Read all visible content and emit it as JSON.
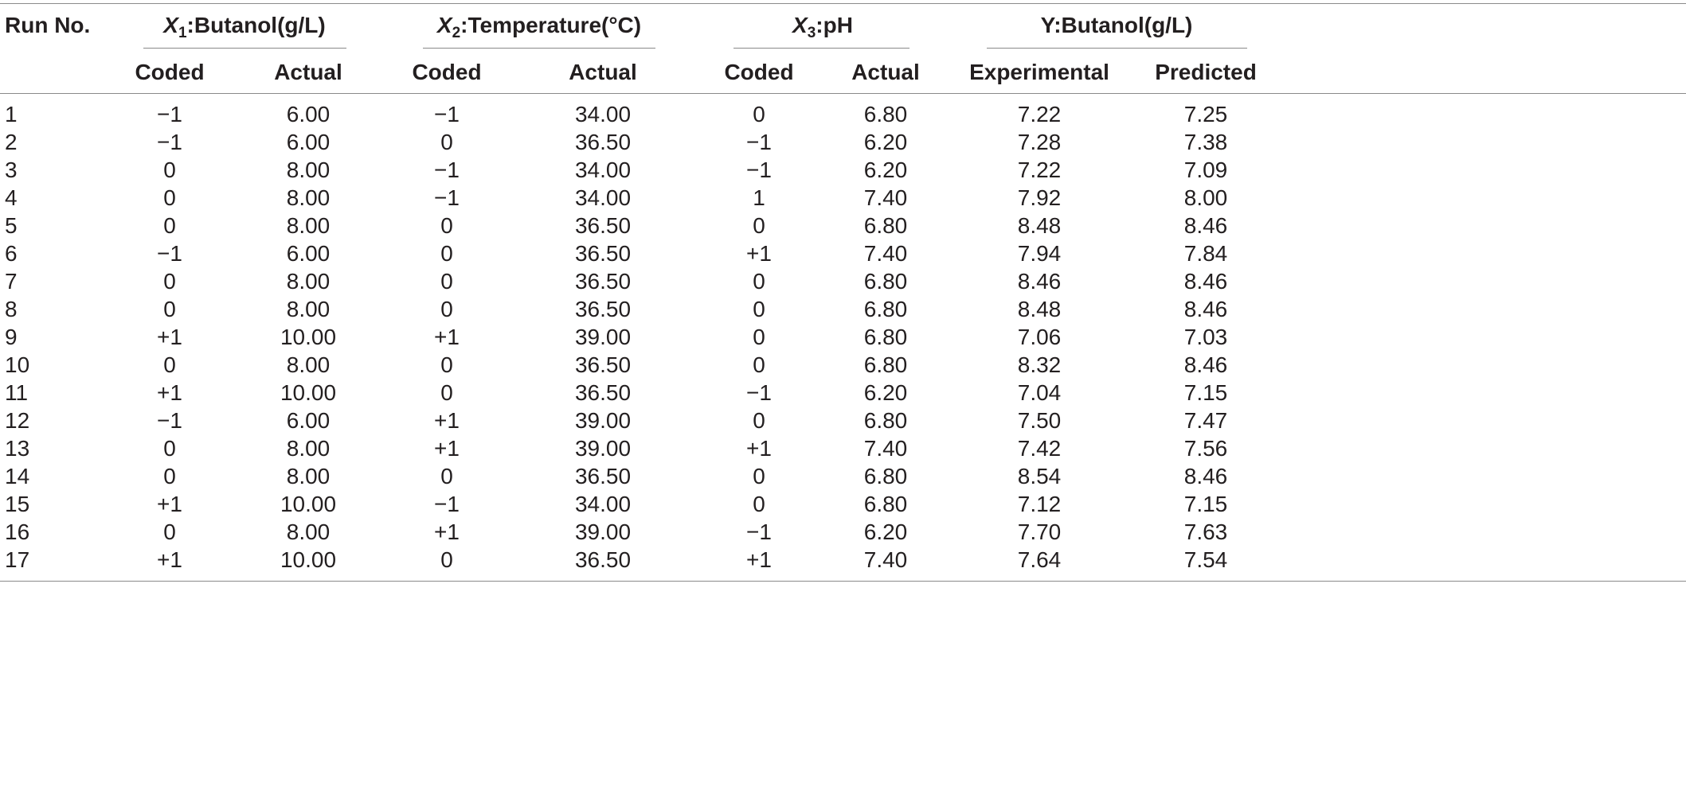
{
  "table": {
    "run_header": "Run No.",
    "groups": [
      {
        "var": "X",
        "sub": "1",
        "rest": ":Butanol(g/L)"
      },
      {
        "var": "X",
        "sub": "2",
        "rest": ":Temperature(°C)"
      },
      {
        "var": "X",
        "sub": "3",
        "rest": ":pH"
      },
      {
        "var": "",
        "sub": "",
        "rest": "Y:Butanol(g/L)"
      }
    ],
    "subheaders": [
      "Coded",
      "Actual",
      "Coded",
      "Actual",
      "Coded",
      "Actual",
      "Experimental",
      "Predicted"
    ],
    "rows": [
      [
        "1",
        "−1",
        "6.00",
        "−1",
        "34.00",
        "0",
        "6.80",
        "7.22",
        "7.25"
      ],
      [
        "2",
        "−1",
        "6.00",
        "0",
        "36.50",
        "−1",
        "6.20",
        "7.28",
        "7.38"
      ],
      [
        "3",
        "0",
        "8.00",
        "−1",
        "34.00",
        "−1",
        "6.20",
        "7.22",
        "7.09"
      ],
      [
        "4",
        "0",
        "8.00",
        "−1",
        "34.00",
        "1",
        "7.40",
        "7.92",
        "8.00"
      ],
      [
        "5",
        "0",
        "8.00",
        "0",
        "36.50",
        "0",
        "6.80",
        "8.48",
        "8.46"
      ],
      [
        "6",
        "−1",
        "6.00",
        "0",
        "36.50",
        "+1",
        "7.40",
        "7.94",
        "7.84"
      ],
      [
        "7",
        "0",
        "8.00",
        "0",
        "36.50",
        "0",
        "6.80",
        "8.46",
        "8.46"
      ],
      [
        "8",
        "0",
        "8.00",
        "0",
        "36.50",
        "0",
        "6.80",
        "8.48",
        "8.46"
      ],
      [
        "9",
        "+1",
        "10.00",
        "+1",
        "39.00",
        "0",
        "6.80",
        "7.06",
        "7.03"
      ],
      [
        "10",
        "0",
        "8.00",
        "0",
        "36.50",
        "0",
        "6.80",
        "8.32",
        "8.46"
      ],
      [
        "11",
        "+1",
        "10.00",
        "0",
        "36.50",
        "−1",
        "6.20",
        "7.04",
        "7.15"
      ],
      [
        "12",
        "−1",
        "6.00",
        "+1",
        "39.00",
        "0",
        "6.80",
        "7.50",
        "7.47"
      ],
      [
        "13",
        "0",
        "8.00",
        "+1",
        "39.00",
        "+1",
        "7.40",
        "7.42",
        "7.56"
      ],
      [
        "14",
        "0",
        "8.00",
        "0",
        "36.50",
        "0",
        "6.80",
        "8.54",
        "8.46"
      ],
      [
        "15",
        "+1",
        "10.00",
        "−1",
        "34.00",
        "0",
        "6.80",
        "7.12",
        "7.15"
      ],
      [
        "16",
        "0",
        "8.00",
        "+1",
        "39.00",
        "−1",
        "6.20",
        "7.70",
        "7.63"
      ],
      [
        "17",
        "+1",
        "10.00",
        "0",
        "36.50",
        "+1",
        "7.40",
        "7.64",
        "7.54"
      ]
    ]
  }
}
